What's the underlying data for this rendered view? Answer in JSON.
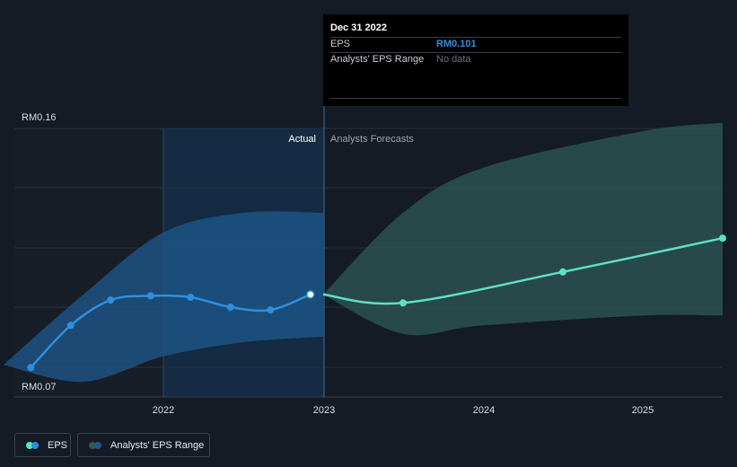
{
  "chart_data": {
    "type": "line",
    "y_ticks": [
      "RM0.16",
      "RM0.07"
    ],
    "x_ticks": [
      "2022",
      "2023",
      "2024",
      "2025"
    ],
    "ylim": [
      0.07,
      0.16
    ],
    "x_range": [
      2021.0,
      2025.5
    ],
    "section_labels": {
      "actual": "Actual",
      "forecast": "Analysts Forecasts"
    },
    "series": [
      {
        "name": "EPS",
        "color": "#2f8fde",
        "x": [
          2021.17,
          2021.42,
          2021.67,
          2021.92,
          2022.17,
          2022.42,
          2022.67,
          2022.92
        ],
        "values": [
          0.075,
          0.09,
          0.099,
          0.1005,
          0.1,
          0.0965,
          0.0955,
          0.101
        ]
      },
      {
        "name": "EPS Forecast",
        "color": "#5ee0c8",
        "x": [
          2023.0,
          2023.5,
          2024.5,
          2025.5
        ],
        "values": [
          0.101,
          0.098,
          0.109,
          0.121
        ]
      }
    ],
    "range": {
      "name": "Analysts' EPS Range",
      "actual_color": "#1e5a8e",
      "forecast_color": "#2f5a55",
      "actual_upper": {
        "x": [
          2021.0,
          2021.5,
          2022.0,
          2022.5,
          2023.0
        ],
        "values": [
          0.076,
          0.101,
          0.123,
          0.13,
          0.13
        ]
      },
      "actual_lower": {
        "x": [
          2021.0,
          2021.5,
          2022.0,
          2022.5,
          2023.0
        ],
        "values": [
          0.076,
          0.07,
          0.079,
          0.084,
          0.086
        ]
      },
      "forecast_upper": {
        "x": [
          2023.0,
          2023.5,
          2024.0,
          2025.0,
          2025.5
        ],
        "values": [
          0.101,
          0.13,
          0.146,
          0.159,
          0.162
        ]
      },
      "forecast_lower": {
        "x": [
          2023.0,
          2023.5,
          2024.0,
          2025.0,
          2025.5
        ],
        "values": [
          0.101,
          0.087,
          0.09,
          0.0935,
          0.0935
        ]
      }
    },
    "tooltip": {
      "date": "Dec 31 2022",
      "rows": [
        {
          "label": "EPS",
          "value": "RM0.101"
        },
        {
          "label": "Analysts' EPS Range",
          "value": "No data"
        }
      ]
    },
    "legend": [
      {
        "label": "EPS",
        "colors": [
          "#2f8fde",
          "#5ee0c8"
        ]
      },
      {
        "label": "Analysts' EPS Range",
        "colors": [
          "#1e5a8e",
          "#2f5a55"
        ]
      }
    ],
    "grid": true
  }
}
